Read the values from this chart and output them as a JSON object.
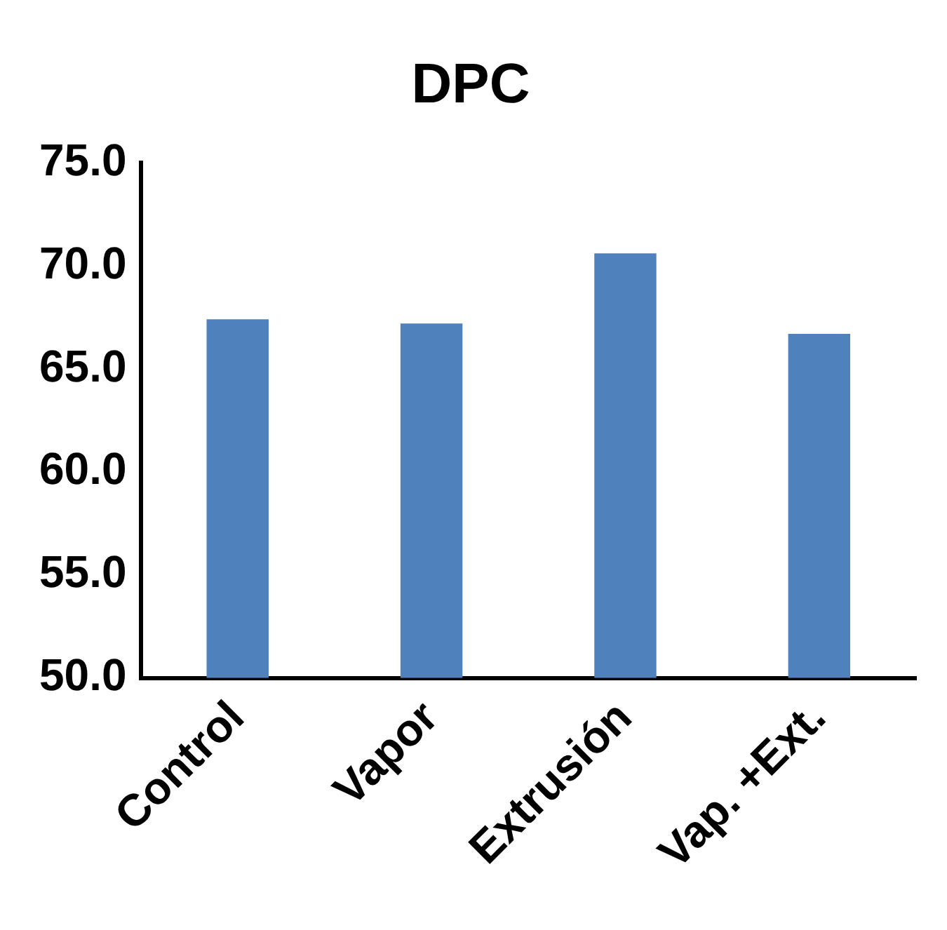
{
  "chart_data": {
    "type": "bar",
    "title": "DPC",
    "categories": [
      "Control",
      "Vapor",
      "Extrusión",
      "Vap. +Ext."
    ],
    "values": [
      67.4,
      67.2,
      70.6,
      66.7
    ],
    "color": "#4f81bd",
    "ylim": [
      50,
      75
    ],
    "yticks": [
      {
        "value": 50,
        "label": "50.0"
      },
      {
        "value": 55,
        "label": "55.0"
      },
      {
        "value": 60,
        "label": "60.0"
      },
      {
        "value": 65,
        "label": "65.0"
      },
      {
        "value": 70,
        "label": "70.0"
      },
      {
        "value": 75,
        "label": "75.0"
      }
    ],
    "grid": false,
    "legend": false
  }
}
